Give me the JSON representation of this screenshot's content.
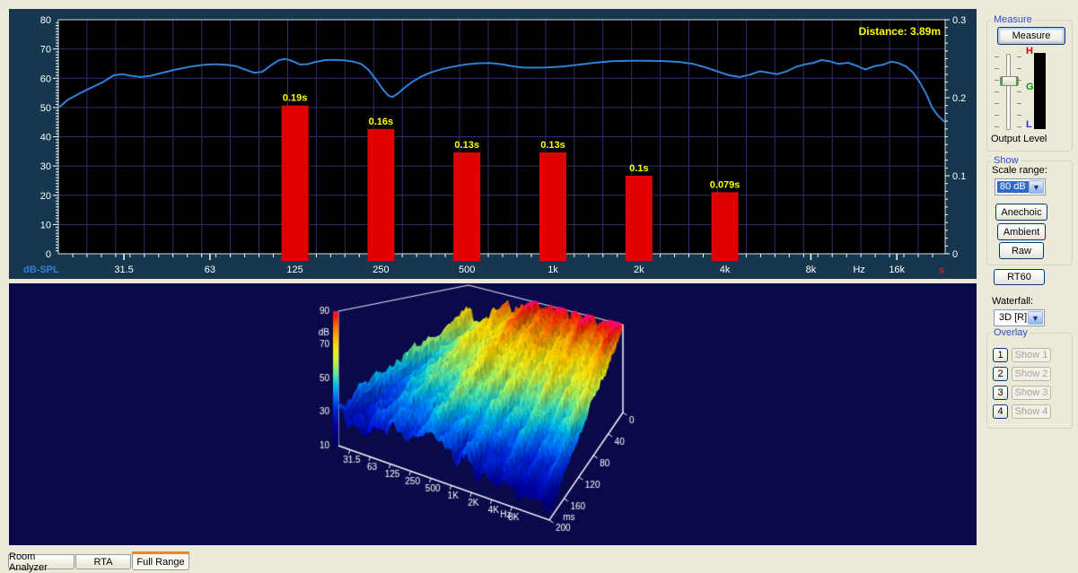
{
  "colors": {
    "panel_bg": "#ece9d8",
    "chart_margin_bg": "#16384f",
    "plot_bg": "#000000",
    "grid": "#2e2e6e",
    "spine": "#d9dee3",
    "tick": "#ffffff",
    "axis_text": "#ffffff",
    "curve": "#2f80d8",
    "bar": "#e00000",
    "bar_label": "#ffff00",
    "annotation": "#ffff00",
    "left_axis_label": "#2f7fd4",
    "right_axis_unit": "#cc2222",
    "waterfall_bg": "#0a0a4b",
    "wireframe": "#f0f0f0",
    "groupbox_title": "#2b4fc4",
    "combo_selection": "#316ac5",
    "tab_active_stripe": "#e8862c"
  },
  "icons": {
    "chevron_down": "▼"
  },
  "chart_data": [
    {
      "type": "line+bar",
      "annotation": "Distance: 3.89m",
      "x_axis": {
        "scale": "log",
        "unit": "Hz",
        "ticks": [
          {
            "label": "31.5",
            "freq": 31.5
          },
          {
            "label": "63",
            "freq": 63
          },
          {
            "label": "125",
            "freq": 125
          },
          {
            "label": "250",
            "freq": 250
          },
          {
            "label": "500",
            "freq": 500
          },
          {
            "label": "1k",
            "freq": 1000
          },
          {
            "label": "2k",
            "freq": 2000
          },
          {
            "label": "4k",
            "freq": 4000
          },
          {
            "label": "8k",
            "freq": 8000
          },
          {
            "label": "Hz",
            "freq": 11800,
            "unit": true
          },
          {
            "label": "16k",
            "freq": 16000
          }
        ]
      },
      "y_left": {
        "label": "dB-SPL",
        "min": 0,
        "max": 80,
        "step": 10
      },
      "y_right": {
        "unit": "s",
        "min": 0,
        "max": 0.3,
        "step": 0.1
      },
      "line_series": {
        "name": "SPL frequency response",
        "points": [
          [
            18.8,
            50.3
          ],
          [
            20,
            52.6
          ],
          [
            22,
            54.8
          ],
          [
            24,
            56.6
          ],
          [
            26.5,
            58.6
          ],
          [
            29,
            61.0
          ],
          [
            31,
            61.4
          ],
          [
            33.5,
            60.8
          ],
          [
            36,
            60.4
          ],
          [
            39,
            60.8
          ],
          [
            43,
            61.9
          ],
          [
            48,
            63.0
          ],
          [
            54,
            64.0
          ],
          [
            60,
            64.6
          ],
          [
            66,
            64.8
          ],
          [
            72,
            64.6
          ],
          [
            78,
            64.1
          ],
          [
            84,
            62.9
          ],
          [
            90,
            61.9
          ],
          [
            96,
            62.2
          ],
          [
            103,
            64.4
          ],
          [
            110,
            66.2
          ],
          [
            116,
            66.6
          ],
          [
            123,
            65.8
          ],
          [
            130,
            64.7
          ],
          [
            138,
            64.8
          ],
          [
            148,
            65.6
          ],
          [
            160,
            66.2
          ],
          [
            172,
            66.3
          ],
          [
            186,
            66.1
          ],
          [
            200,
            65.7
          ],
          [
            213,
            64.9
          ],
          [
            226,
            62.9
          ],
          [
            240,
            59.6
          ],
          [
            255,
            56.0
          ],
          [
            266,
            54.0
          ],
          [
            274,
            53.6
          ],
          [
            285,
            54.6
          ],
          [
            300,
            56.5
          ],
          [
            320,
            58.6
          ],
          [
            345,
            60.5
          ],
          [
            375,
            62.0
          ],
          [
            410,
            63.2
          ],
          [
            450,
            64.0
          ],
          [
            495,
            64.7
          ],
          [
            545,
            65.1
          ],
          [
            600,
            65.2
          ],
          [
            660,
            64.8
          ],
          [
            720,
            64.1
          ],
          [
            780,
            63.7
          ],
          [
            850,
            63.6
          ],
          [
            950,
            63.7
          ],
          [
            1080,
            64.0
          ],
          [
            1220,
            64.6
          ],
          [
            1400,
            65.3
          ],
          [
            1600,
            65.8
          ],
          [
            1850,
            66.0
          ],
          [
            2100,
            66.0
          ],
          [
            2400,
            65.9
          ],
          [
            2750,
            65.6
          ],
          [
            3100,
            64.9
          ],
          [
            3450,
            63.6
          ],
          [
            3800,
            62.2
          ],
          [
            4150,
            61.0
          ],
          [
            4500,
            60.4
          ],
          [
            4900,
            61.2
          ],
          [
            5300,
            62.4
          ],
          [
            5700,
            61.9
          ],
          [
            6100,
            61.4
          ],
          [
            6600,
            62.4
          ],
          [
            7100,
            63.9
          ],
          [
            7600,
            64.7
          ],
          [
            8200,
            65.3
          ],
          [
            8700,
            66.2
          ],
          [
            9300,
            65.8
          ],
          [
            10000,
            64.9
          ],
          [
            10800,
            65.3
          ],
          [
            11600,
            64.2
          ],
          [
            12400,
            63.0
          ],
          [
            13300,
            64.1
          ],
          [
            14300,
            64.6
          ],
          [
            15300,
            65.7
          ],
          [
            16200,
            65.2
          ],
          [
            17200,
            64.1
          ],
          [
            18200,
            62.0
          ],
          [
            19200,
            58.8
          ],
          [
            20300,
            54.5
          ],
          [
            21300,
            49.8
          ],
          [
            22400,
            47.0
          ],
          [
            23500,
            45.2
          ]
        ]
      },
      "bar_series": {
        "name": "RT60",
        "bars": [
          {
            "freq": 125,
            "seconds": 0.19,
            "label": "0.19s"
          },
          {
            "freq": 250,
            "seconds": 0.16,
            "label": "0.16s"
          },
          {
            "freq": 500,
            "seconds": 0.13,
            "label": "0.13s"
          },
          {
            "freq": 1000,
            "seconds": 0.13,
            "label": "0.13s"
          },
          {
            "freq": 2000,
            "seconds": 0.1,
            "label": "0.1s"
          },
          {
            "freq": 4000,
            "seconds": 0.079,
            "label": "0.079s"
          }
        ]
      }
    },
    {
      "type": "3d-waterfall",
      "name": "Cumulative spectral decay waterfall",
      "z_axis": {
        "unit": "dB",
        "min": 10,
        "max": 90,
        "ticks": [
          {
            "t": "90",
            "z": 90
          },
          {
            "t": "70",
            "z": 70
          },
          {
            "t": "50",
            "z": 50
          },
          {
            "t": "30",
            "z": 30
          },
          {
            "t": "10",
            "z": 10
          }
        ]
      },
      "freq_axis": {
        "unit": "Hz",
        "labels": [
          {
            "t": "31.5",
            "u": 0.055
          },
          {
            "t": "63",
            "u": 0.151
          },
          {
            "t": "125",
            "u": 0.247
          },
          {
            "t": "250",
            "u": 0.343
          },
          {
            "t": "500",
            "u": 0.439
          },
          {
            "t": "1K",
            "u": 0.535
          },
          {
            "t": "2K",
            "u": 0.631
          },
          {
            "t": "4K",
            "u": 0.727
          },
          {
            "t": "Hz",
            "u": 0.785,
            "unit": true
          },
          {
            "t": "8K",
            "u": 0.823
          }
        ]
      },
      "time_axis": {
        "unit": "ms",
        "min": 0,
        "max": 200,
        "labels": [
          {
            "t": "0",
            "v": 0
          },
          {
            "t": "40",
            "v": 0.2
          },
          {
            "t": "80",
            "v": 0.4
          },
          {
            "t": "120",
            "v": 0.6
          },
          {
            "t": "160",
            "v": 0.8
          },
          {
            "t": "ms",
            "v": 0.9,
            "unit": true
          },
          {
            "t": "200",
            "v": 1
          }
        ]
      },
      "surface_model": {
        "back_level_low_db": 63,
        "back_level_high_db": 88,
        "decay_low_db_per_ms": 0.16,
        "decay_high_db_per_ms": 0.36,
        "valley_positions": [
          0.05,
          0.36,
          0.56,
          0.73
        ],
        "valley_depths_db": [
          8,
          9,
          7,
          5
        ],
        "ridge_amp_db": 4.5,
        "noise_amp_db": 2.2
      },
      "palette": [
        [
          10,
          "#00005a"
        ],
        [
          22,
          "#0000a0"
        ],
        [
          32,
          "#0028dc"
        ],
        [
          40,
          "#0078ff"
        ],
        [
          46,
          "#00bee6"
        ],
        [
          52,
          "#50e6aa"
        ],
        [
          58,
          "#aaf05a"
        ],
        [
          64,
          "#e6f028"
        ],
        [
          70,
          "#ffdc00"
        ],
        [
          76,
          "#ffaa00"
        ],
        [
          82,
          "#ff6400"
        ],
        [
          87,
          "#ff1e00"
        ],
        [
          92,
          "#ff0096"
        ]
      ]
    }
  ],
  "side_panel": {
    "measure_group": {
      "title": "Measure",
      "button": "Measure",
      "output_level": "Output Level",
      "meter_labels": {
        "high": "H",
        "mid": "G",
        "low": "L"
      }
    },
    "show_group": {
      "title": "Show",
      "scale_range_label": "Scale range:",
      "scale_range_value": "80 dB",
      "buttons": [
        {
          "label": "Anechoic"
        },
        {
          "label": "Ambient"
        },
        {
          "label": "Raw"
        }
      ]
    },
    "rt60_button": "RT60",
    "waterfall_label": "Waterfall:",
    "waterfall_value": "3D [R]",
    "overlay_group": {
      "title": "Overlay",
      "rows": [
        {
          "num": "1",
          "label": "Show 1"
        },
        {
          "num": "2",
          "label": "Show 2"
        },
        {
          "num": "3",
          "label": "Show 3"
        },
        {
          "num": "4",
          "label": "Show 4"
        }
      ]
    }
  },
  "tabs": [
    {
      "label": "Room Analyzer",
      "active": false
    },
    {
      "label": "RTA",
      "active": false
    },
    {
      "label": "Full Range",
      "active": true
    }
  ]
}
